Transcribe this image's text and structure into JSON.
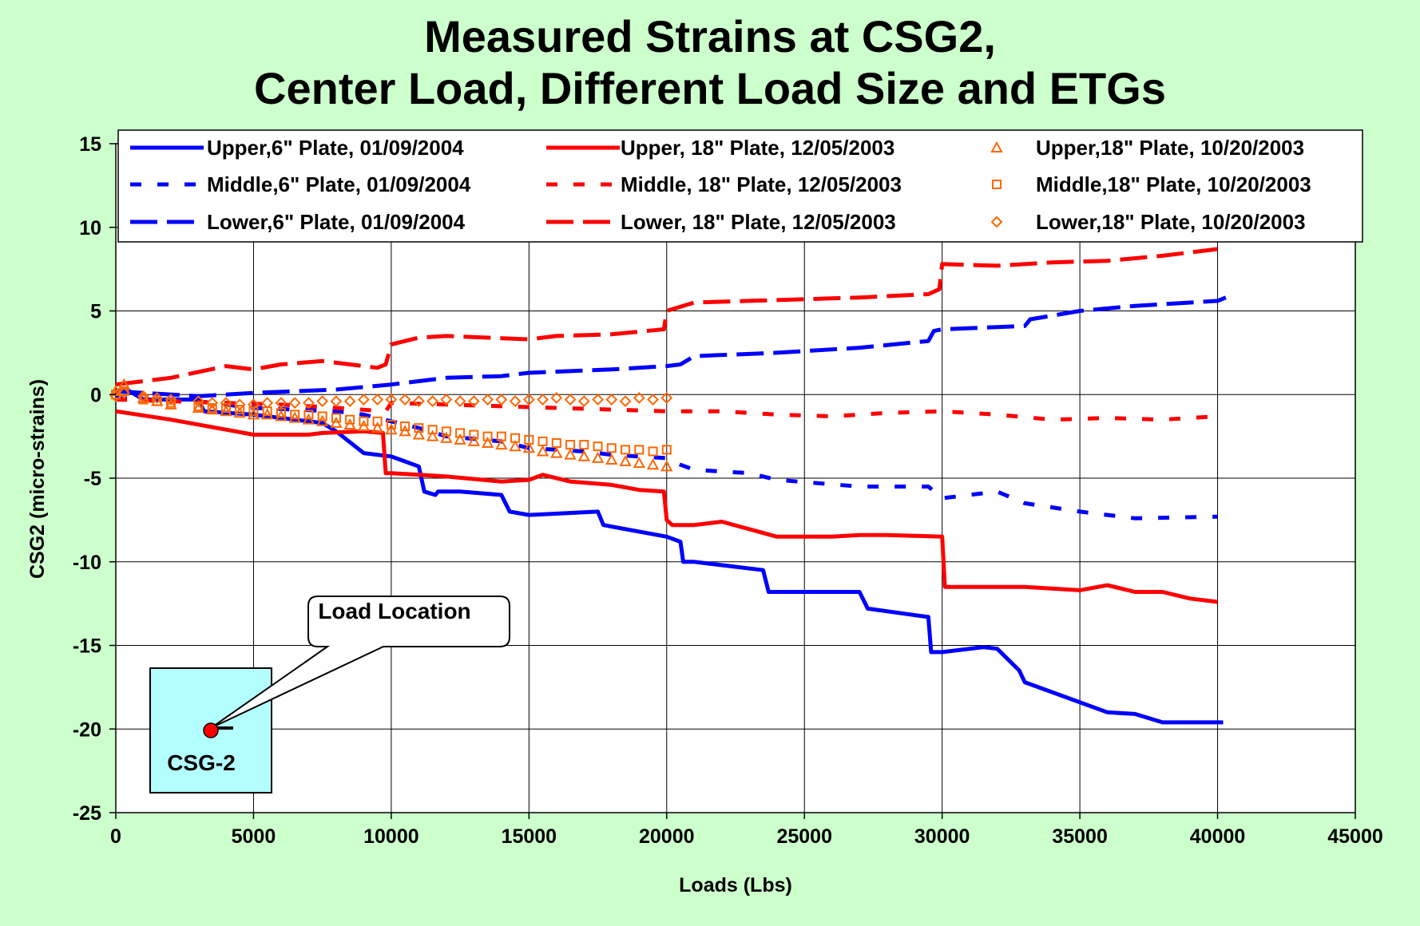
{
  "colors": {
    "background": "#CCFFCC",
    "plot_area": "#FFFFFF",
    "blue": "#0000FF",
    "red": "#FF0000",
    "orange": "#FF6600",
    "inset_box": "#B3FFFF",
    "marker_dot": "#FF0000"
  },
  "chart_data": {
    "type": "line",
    "title": [
      "Measured Strains at CSG2,",
      "Center Load, Different Load Size and ETGs"
    ],
    "xlabel": "Loads (Lbs)",
    "ylabel": "CSG2 (micro-strains)",
    "xlim": [
      0,
      45000
    ],
    "ylim": [
      -25,
      15
    ],
    "xticks": [
      0,
      5000,
      10000,
      15000,
      20000,
      25000,
      30000,
      35000,
      40000,
      45000
    ],
    "yticks": [
      -25,
      -20,
      -15,
      -10,
      -5,
      0,
      5,
      10,
      15
    ],
    "grid": true,
    "legend_position": "top",
    "series": [
      {
        "name": "Upper,6\" Plate, 01/09/2004",
        "color": "#0000FF",
        "style": "solid",
        "x": [
          0,
          500,
          1000,
          3000,
          3200,
          5000,
          7500,
          8000,
          9000,
          10000,
          11000,
          11200,
          11600,
          11700,
          12500,
          14000,
          14300,
          15000,
          17500,
          17700,
          20000,
          20500,
          20600,
          21000,
          23500,
          23700,
          27000,
          27300,
          29500,
          29600,
          30000,
          31500,
          32000,
          32800,
          33000,
          36000,
          37000,
          38000,
          40000,
          40200
        ],
        "y": [
          0.2,
          0.2,
          -0.3,
          -0.3,
          -1.0,
          -1.2,
          -1.7,
          -2.2,
          -3.5,
          -3.7,
          -4.3,
          -5.8,
          -6.0,
          -5.8,
          -5.8,
          -6.0,
          -7.0,
          -7.2,
          -7.0,
          -7.8,
          -8.5,
          -8.8,
          -10.0,
          -10.0,
          -10.5,
          -11.8,
          -11.8,
          -12.8,
          -13.3,
          -15.4,
          -15.4,
          -15.1,
          -15.2,
          -16.5,
          -17.2,
          -19.0,
          -19.1,
          -19.6,
          -19.6,
          -19.6
        ]
      },
      {
        "name": "Middle,6\" Plate, 01/09/2004",
        "color": "#0000FF",
        "style": "dash",
        "x": [
          0,
          1000,
          3000,
          5000,
          8000,
          9000,
          10000,
          11000,
          12000,
          14000,
          15000,
          17000,
          18000,
          20000,
          20500,
          21000,
          23000,
          24000,
          27000,
          29500,
          30000,
          32000,
          33000,
          35000,
          37000,
          40000
        ],
        "y": [
          -0.2,
          -0.3,
          -0.4,
          -0.8,
          -1.0,
          -1.2,
          -1.6,
          -2.0,
          -2.5,
          -2.8,
          -3.2,
          -3.4,
          -3.6,
          -3.8,
          -4.2,
          -4.5,
          -4.7,
          -5.1,
          -5.5,
          -5.5,
          -6.2,
          -5.8,
          -6.5,
          -7.0,
          -7.4,
          -7.3
        ]
      },
      {
        "name": "Lower,6\" Plate, 01/09/2004",
        "color": "#0000FF",
        "style": "longdash",
        "x": [
          0,
          1000,
          3000,
          5000,
          8000,
          10000,
          11000,
          12000,
          14000,
          15000,
          18000,
          20000,
          20500,
          21000,
          24000,
          27000,
          29500,
          29700,
          30000,
          33000,
          33200,
          35000,
          37000,
          38000,
          40000,
          40300
        ],
        "y": [
          0.2,
          0.1,
          -0.1,
          0.1,
          0.3,
          0.6,
          0.8,
          1.0,
          1.1,
          1.3,
          1.5,
          1.7,
          1.8,
          2.3,
          2.5,
          2.8,
          3.2,
          3.8,
          3.9,
          4.1,
          4.5,
          5.0,
          5.3,
          5.4,
          5.6,
          5.8
        ]
      },
      {
        "name": "Upper, 18\" Plate, 12/05/2003",
        "color": "#FF0000",
        "style": "solid",
        "x": [
          0,
          2000,
          4000,
          5000,
          7000,
          7500,
          9000,
          9700,
          9800,
          10000,
          12000,
          14000,
          15000,
          15500,
          16500,
          18000,
          19000,
          19900,
          20000,
          20200,
          21000,
          22000,
          24000,
          26000,
          27000,
          28000,
          30000,
          30100,
          31000,
          33000,
          35000,
          36000,
          37000,
          38000,
          39000,
          40000
        ],
        "y": [
          -1.0,
          -1.5,
          -2.1,
          -2.4,
          -2.4,
          -2.3,
          -2.2,
          -2.3,
          -4.7,
          -4.7,
          -4.9,
          -5.2,
          -5.1,
          -4.8,
          -5.2,
          -5.4,
          -5.7,
          -5.8,
          -7.5,
          -7.8,
          -7.8,
          -7.6,
          -8.5,
          -8.5,
          -8.4,
          -8.4,
          -8.5,
          -11.5,
          -11.5,
          -11.5,
          -11.7,
          -11.4,
          -11.8,
          -11.8,
          -12.2,
          -12.4
        ]
      },
      {
        "name": "Middle, 18\" Plate, 12/05/2003",
        "color": "#FF0000",
        "style": "dash",
        "x": [
          0,
          2000,
          4000,
          6000,
          8000,
          9800,
          10000,
          12000,
          14000,
          16000,
          18000,
          20000,
          22000,
          24000,
          26000,
          28000,
          30000,
          32000,
          34000,
          36000,
          38000,
          40000
        ],
        "y": [
          -0.3,
          -0.4,
          -0.5,
          -0.6,
          -0.8,
          -1.0,
          -0.5,
          -0.6,
          -0.7,
          -0.8,
          -0.9,
          -1.0,
          -1.0,
          -1.2,
          -1.3,
          -1.1,
          -1.0,
          -1.2,
          -1.5,
          -1.4,
          -1.5,
          -1.3
        ]
      },
      {
        "name": "Lower, 18\" Plate, 12/05/2003",
        "color": "#FF0000",
        "style": "longdash",
        "x": [
          0,
          2000,
          4000,
          5000,
          6000,
          7500,
          9500,
          9800,
          10000,
          11000,
          12000,
          15000,
          16000,
          18000,
          19900,
          20000,
          21000,
          23000,
          25000,
          27000,
          29500,
          29900,
          30000,
          32000,
          34000,
          36000,
          38000,
          40000
        ],
        "y": [
          0.6,
          1.0,
          1.7,
          1.5,
          1.8,
          2.0,
          1.6,
          1.8,
          3.0,
          3.4,
          3.5,
          3.3,
          3.5,
          3.6,
          3.9,
          5.0,
          5.5,
          5.6,
          5.7,
          5.8,
          6.0,
          6.3,
          7.8,
          7.7,
          7.9,
          8.0,
          8.3,
          8.7
        ]
      },
      {
        "name": "Upper,18\" Plate, 10/20/2003",
        "color": "#FF6600",
        "style": "triangle",
        "x": [
          0,
          300,
          1000,
          1500,
          2000,
          3000,
          3500,
          4000,
          4500,
          5000,
          5500,
          6000,
          6500,
          7000,
          7500,
          8000,
          8500,
          9000,
          9500,
          10000,
          10500,
          11000,
          11500,
          12000,
          12500,
          13000,
          13500,
          14000,
          14500,
          15000,
          15500,
          16000,
          16500,
          17000,
          17500,
          18000,
          18500,
          19000,
          19500,
          20000
        ],
        "y": [
          0.2,
          0.6,
          -0.2,
          -0.4,
          -0.6,
          -0.8,
          -0.9,
          -1.0,
          -1.1,
          -1.2,
          -1.2,
          -1.3,
          -1.4,
          -1.5,
          -1.6,
          -1.7,
          -1.8,
          -1.9,
          -2.0,
          -2.1,
          -2.2,
          -2.4,
          -2.5,
          -2.6,
          -2.7,
          -2.8,
          -2.9,
          -3.0,
          -3.1,
          -3.2,
          -3.4,
          -3.5,
          -3.6,
          -3.7,
          -3.8,
          -3.9,
          -4.0,
          -4.1,
          -4.2,
          -4.3
        ]
      },
      {
        "name": "Middle,18\" Plate, 10/20/2003",
        "color": "#FF6600",
        "style": "square",
        "x": [
          0,
          300,
          1000,
          1500,
          2000,
          3000,
          3500,
          4000,
          4500,
          5000,
          5500,
          6000,
          6500,
          7000,
          7500,
          8000,
          8500,
          9000,
          9500,
          10000,
          10500,
          11000,
          11500,
          12000,
          12500,
          13000,
          13500,
          14000,
          14500,
          15000,
          15500,
          16000,
          16500,
          17000,
          17500,
          18000,
          18500,
          19000,
          19500,
          20000
        ],
        "y": [
          0.0,
          0.2,
          -0.3,
          -0.4,
          -0.5,
          -0.7,
          -0.8,
          -0.8,
          -0.9,
          -1.0,
          -1.0,
          -1.1,
          -1.2,
          -1.2,
          -1.3,
          -1.4,
          -1.5,
          -1.6,
          -1.6,
          -1.8,
          -1.9,
          -2.0,
          -2.1,
          -2.2,
          -2.3,
          -2.4,
          -2.5,
          -2.5,
          -2.6,
          -2.7,
          -2.8,
          -2.9,
          -3.0,
          -3.0,
          -3.1,
          -3.2,
          -3.3,
          -3.3,
          -3.4,
          -3.3
        ]
      },
      {
        "name": "Lower,18\" Plate, 10/20/2003",
        "color": "#FF6600",
        "style": "diamond",
        "x": [
          0,
          300,
          1000,
          1500,
          2000,
          3000,
          3500,
          4000,
          4500,
          5000,
          5500,
          6000,
          6500,
          7000,
          7500,
          8000,
          8500,
          9000,
          9500,
          10000,
          10500,
          11000,
          11500,
          12000,
          12500,
          13000,
          13500,
          14000,
          14500,
          15000,
          15500,
          16000,
          16500,
          17000,
          17500,
          18000,
          18500,
          19000,
          19500,
          20000
        ],
        "y": [
          -0.1,
          0.1,
          -0.1,
          -0.2,
          -0.3,
          -0.4,
          -0.5,
          -0.5,
          -0.6,
          -0.6,
          -0.5,
          -0.5,
          -0.5,
          -0.5,
          -0.4,
          -0.4,
          -0.4,
          -0.3,
          -0.3,
          -0.3,
          -0.3,
          -0.4,
          -0.4,
          -0.3,
          -0.4,
          -0.4,
          -0.3,
          -0.3,
          -0.4,
          -0.3,
          -0.3,
          -0.2,
          -0.3,
          -0.4,
          -0.3,
          -0.3,
          -0.4,
          -0.2,
          -0.3,
          -0.2
        ]
      }
    ]
  },
  "inset": {
    "callout_label": "Load Location",
    "gauge_label": "CSG-2"
  }
}
